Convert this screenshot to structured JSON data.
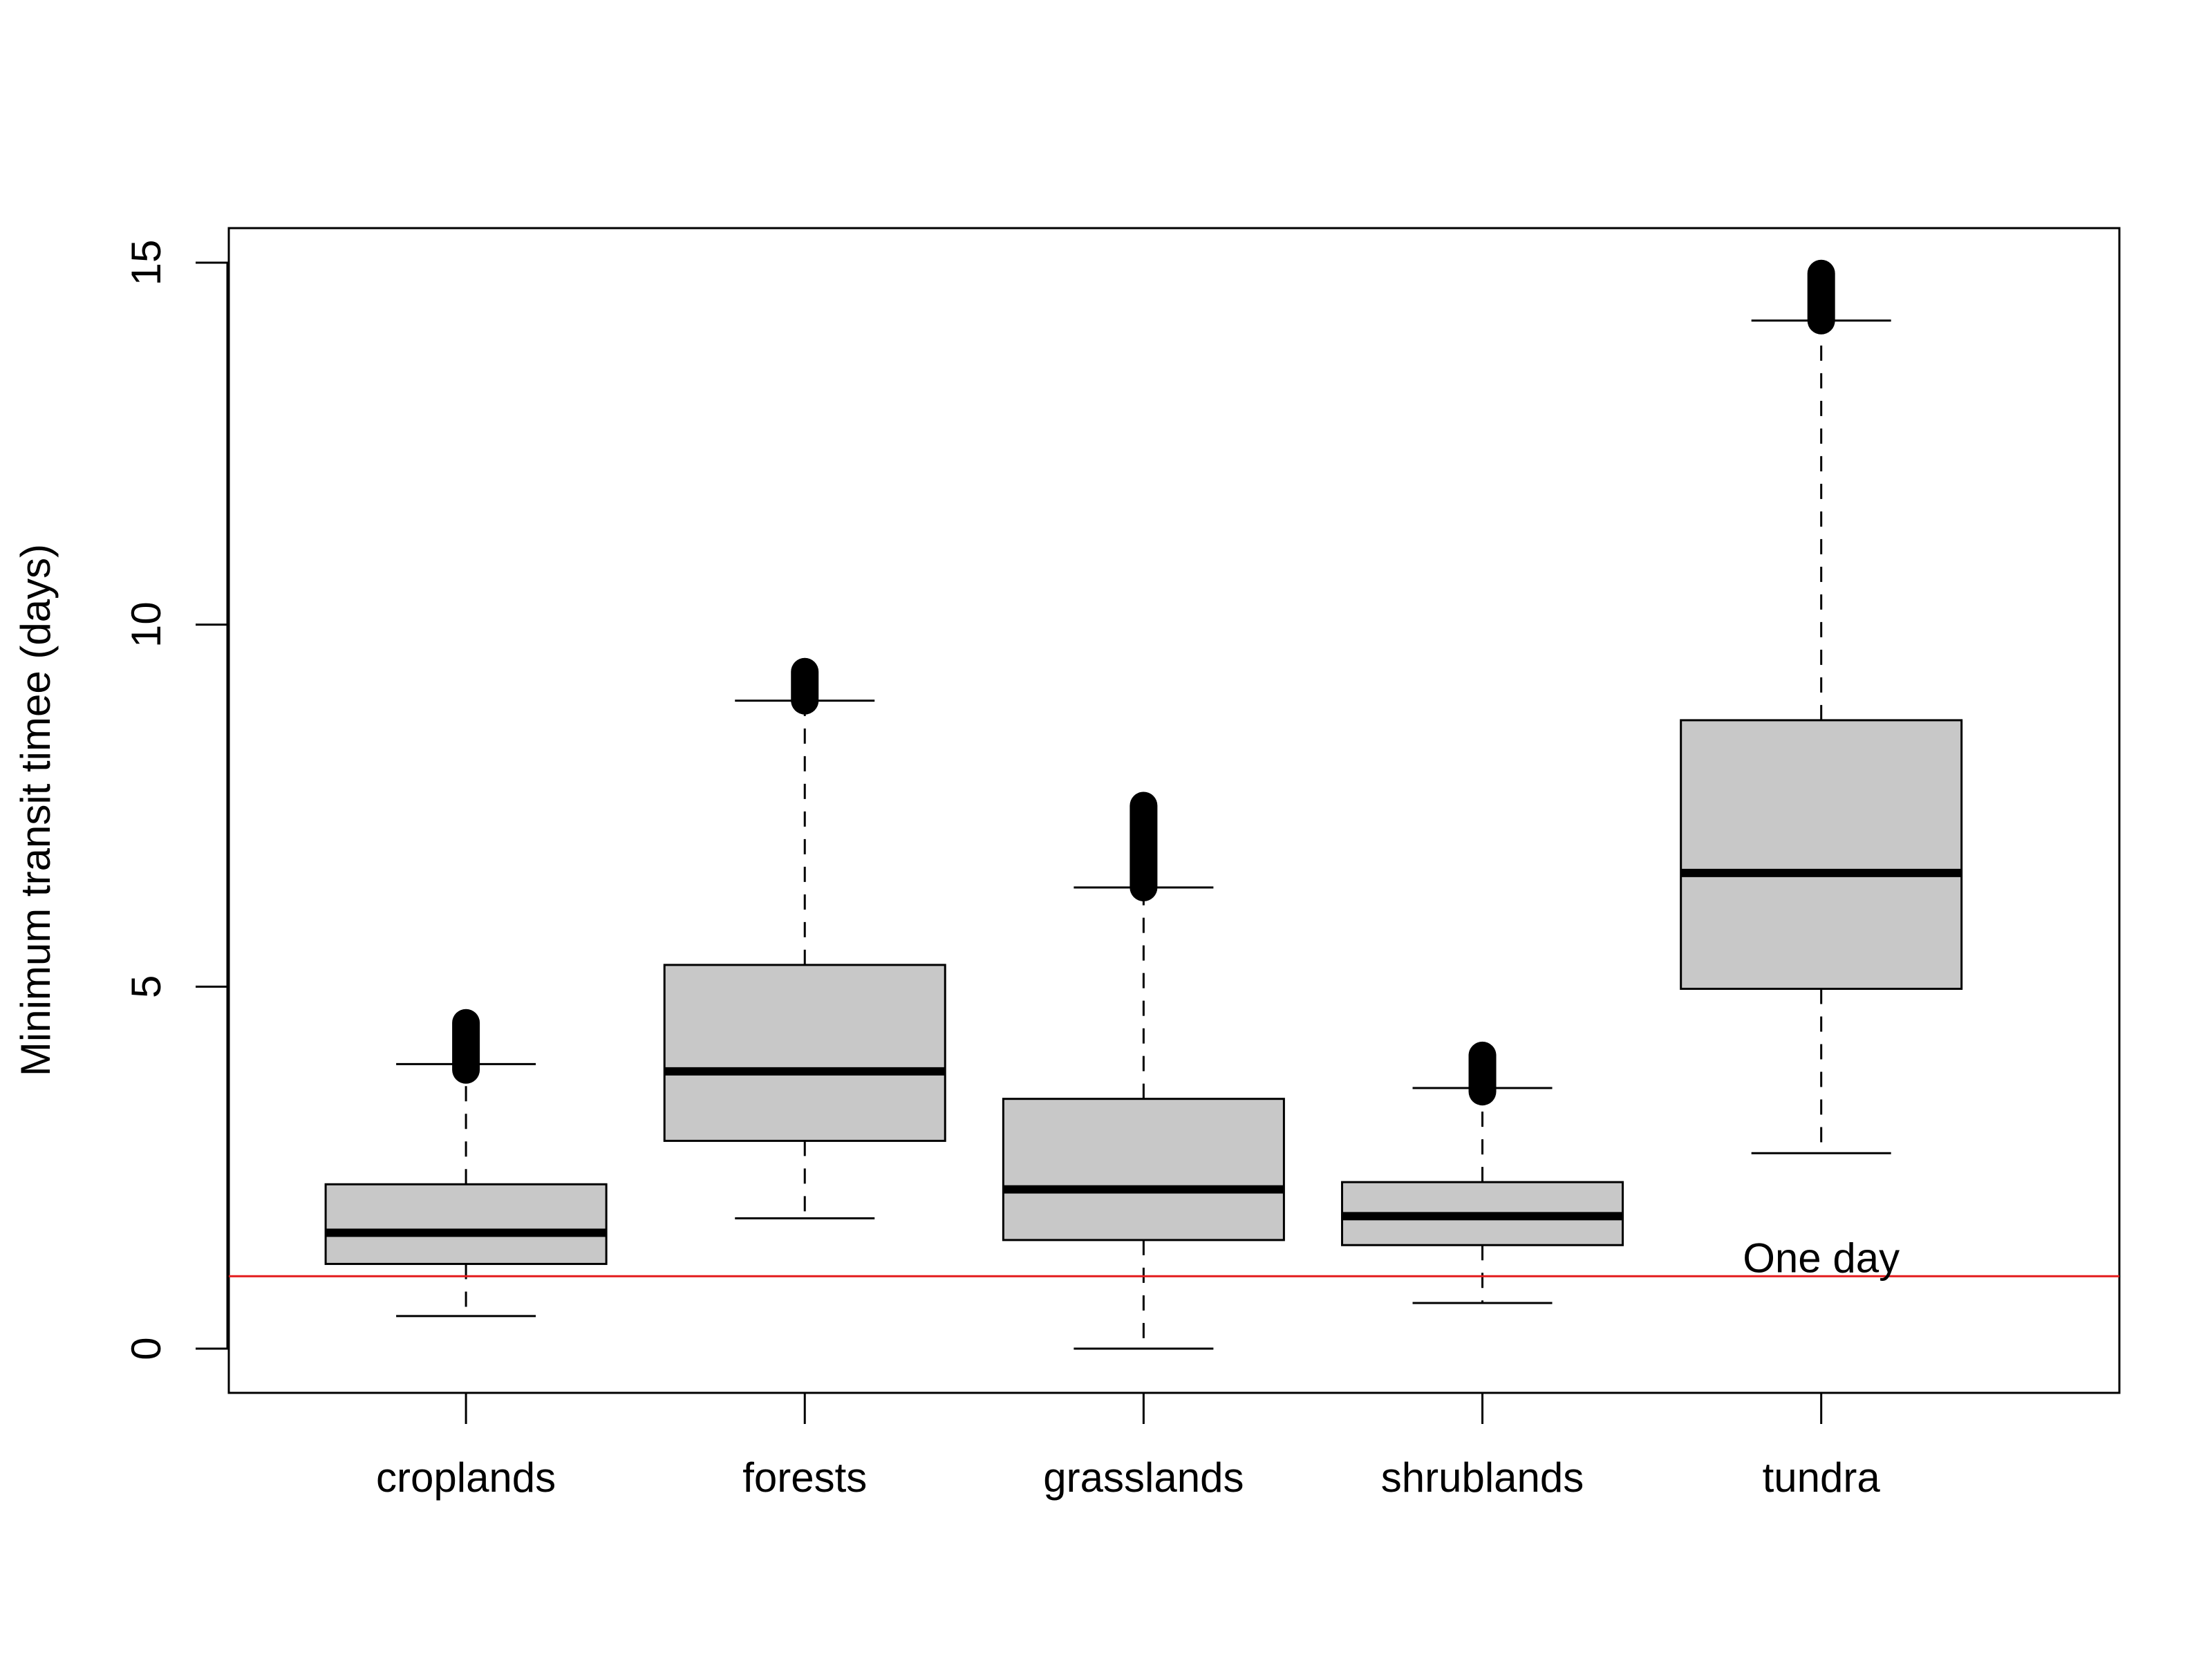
{
  "chart_data": {
    "type": "boxplot",
    "title": "",
    "xlabel": "",
    "ylabel": "Minimum transit timee (days)",
    "ylim": [
      -0.6,
      15.5
    ],
    "yticks": [
      0,
      5,
      10,
      15
    ],
    "categories": [
      "croplands",
      "forests",
      "grasslands",
      "shrublands",
      "tundra"
    ],
    "boxes": [
      {
        "name": "croplands",
        "whisker_low": 0.45,
        "q1": 1.17,
        "median": 1.6,
        "q3": 2.27,
        "whisker_high": 3.93,
        "outlier_low": 3.85,
        "outlier_high": 4.5
      },
      {
        "name": "forests",
        "whisker_low": 1.8,
        "q1": 2.87,
        "median": 3.83,
        "q3": 5.3,
        "whisker_high": 8.95,
        "outlier_low": 8.95,
        "outlier_high": 9.35
      },
      {
        "name": "grasslands",
        "whisker_low": 0.0,
        "q1": 1.5,
        "median": 2.2,
        "q3": 3.45,
        "whisker_high": 6.37,
        "outlier_low": 6.37,
        "outlier_high": 7.5
      },
      {
        "name": "shrublands",
        "whisker_low": 0.63,
        "q1": 1.43,
        "median": 1.83,
        "q3": 2.3,
        "whisker_high": 3.6,
        "outlier_low": 3.55,
        "outlier_high": 4.05
      },
      {
        "name": "tundra",
        "whisker_low": 2.7,
        "q1": 4.97,
        "median": 6.57,
        "q3": 8.68,
        "whisker_high": 14.2,
        "outlier_low": 14.2,
        "outlier_high": 14.85
      }
    ],
    "reference_line": {
      "y": 1,
      "label": "One day",
      "color": "#e31a1c"
    },
    "box_fill": "#c8c8c8",
    "grid": false,
    "legend": "none"
  }
}
